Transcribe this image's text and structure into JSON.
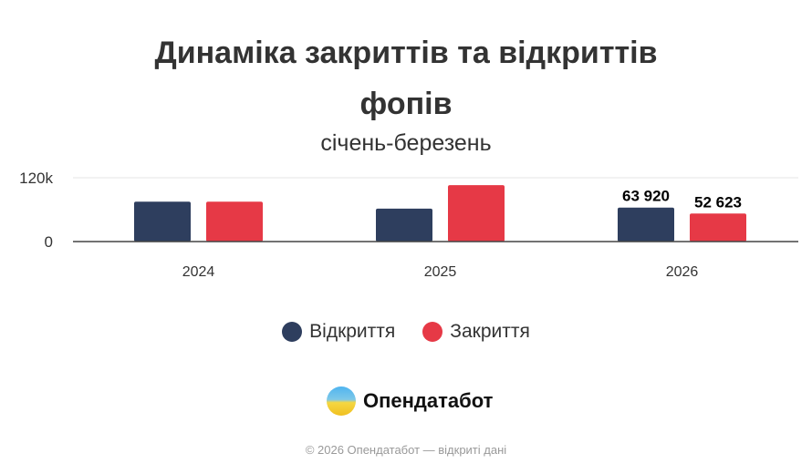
{
  "chart_data": {
    "type": "bar",
    "title": "Динаміка закриттів та відкриттів фопів",
    "subtitle": "січень-березень",
    "categories": [
      "2024",
      "2025",
      "2026"
    ],
    "series": [
      {
        "name": "Відкриття",
        "color": "#2e3e5e",
        "values": [
          75000,
          62000,
          63920
        ],
        "labels": [
          "",
          "",
          "63 920"
        ]
      },
      {
        "name": "Закриття",
        "color": "#e63946",
        "values": [
          75000,
          106000,
          52623
        ],
        "labels": [
          "",
          "",
          "52 623"
        ]
      }
    ],
    "ylim": [
      0,
      120000
    ],
    "yticks": [
      {
        "value": 0,
        "label": "0"
      },
      {
        "value": 120000,
        "label": "120k"
      }
    ],
    "grid": true,
    "legend": "bottom"
  },
  "title_line1": "Динаміка закриттів та відкриттів",
  "title_line2": "фопів",
  "logo": {
    "text": "Опендатабот"
  },
  "footer": "© 2026 Опендатабот — відкриті дані"
}
